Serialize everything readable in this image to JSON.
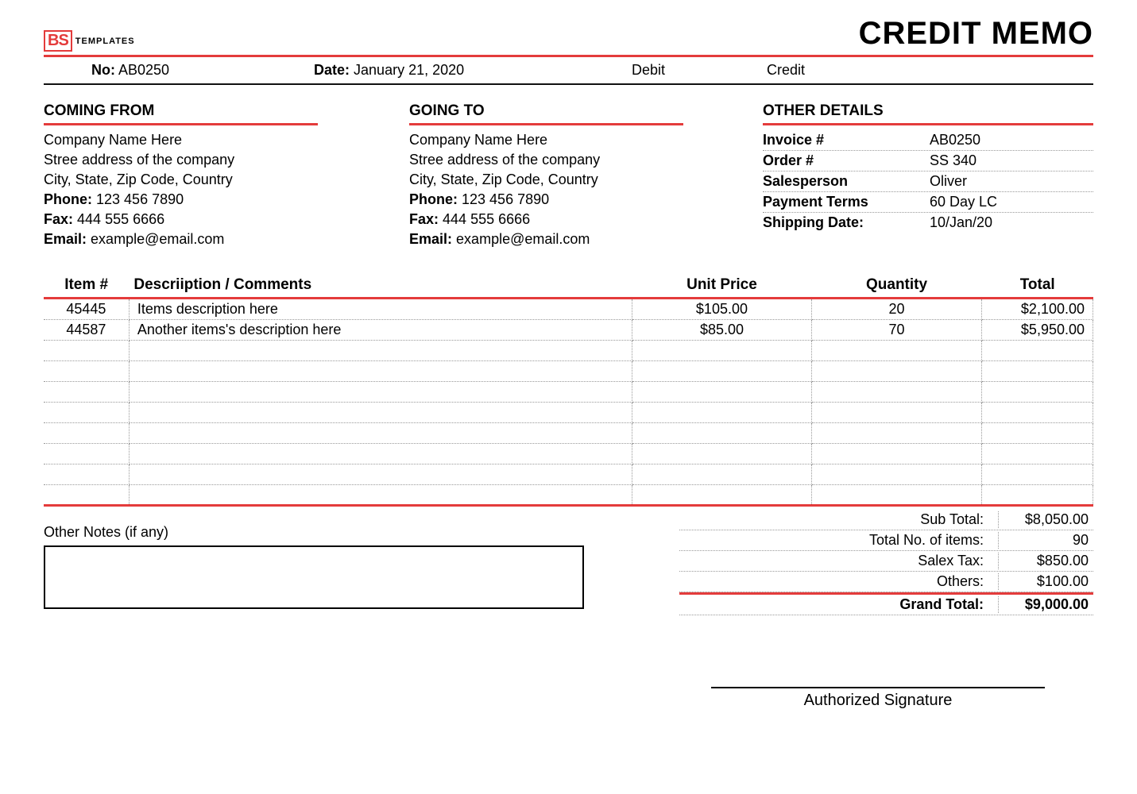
{
  "colors": {
    "accent": "#e43b3b",
    "text": "#000000",
    "dotted_border": "#999999",
    "background": "#ffffff"
  },
  "logo": {
    "mark": "BS",
    "word": "TEMPLATES"
  },
  "title": "CREDIT MEMO",
  "meta": {
    "no_label": "No:",
    "no_value": "AB0250",
    "date_label": "Date:",
    "date_value": "January 21, 2020",
    "debit_label": "Debit",
    "credit_label": "Credit"
  },
  "from": {
    "heading": "COMING FROM",
    "company": "Company Name Here",
    "street": "Stree address of the company",
    "city": "City, State, Zip Code, Country",
    "phone_label": "Phone:",
    "phone": "123 456 7890",
    "fax_label": "Fax:",
    "fax": "444 555 6666",
    "email_label": "Email:",
    "email": "example@email.com"
  },
  "to": {
    "heading": "GOING TO",
    "company": "Company Name Here",
    "street": "Stree address of the company",
    "city": "City, State, Zip Code, Country",
    "phone_label": "Phone:",
    "phone": "123 456 7890",
    "fax_label": "Fax:",
    "fax": "444 555 6666",
    "email_label": "Email:",
    "email": "example@email.com"
  },
  "other": {
    "heading": "OTHER DETAILS",
    "rows": [
      {
        "label": "Invoice #",
        "value": "AB0250"
      },
      {
        "label": "Order #",
        "value": "SS 340"
      },
      {
        "label": "Salesperson",
        "value": "Oliver"
      },
      {
        "label": "Payment Terms",
        "value": "60 Day LC"
      },
      {
        "label": "Shipping Date:",
        "value": "10/Jan/20"
      }
    ]
  },
  "items_table": {
    "columns": [
      "Item #",
      "Descriiption / Comments",
      "Unit Price",
      "Quantity",
      "Total"
    ],
    "empty_rows": 8,
    "rows": [
      {
        "item": "45445",
        "desc": "Items description here",
        "price": "$105.00",
        "qty": "20",
        "total": "$2,100.00"
      },
      {
        "item": "44587",
        "desc": "Another items's description here",
        "price": "$85.00",
        "qty": "70",
        "total": "$5,950.00"
      }
    ]
  },
  "notes_label": "Other Notes (if any)",
  "totals": [
    {
      "label": "Sub Total:",
      "value": "$8,050.00"
    },
    {
      "label": "Total No. of items:",
      "value": "90"
    },
    {
      "label": "Salex Tax:",
      "value": "$850.00"
    },
    {
      "label": "Others:",
      "value": "$100.00"
    }
  ],
  "grand_total": {
    "label": "Grand Total:",
    "value": "$9,000.00"
  },
  "signature_label": "Authorized Signature"
}
